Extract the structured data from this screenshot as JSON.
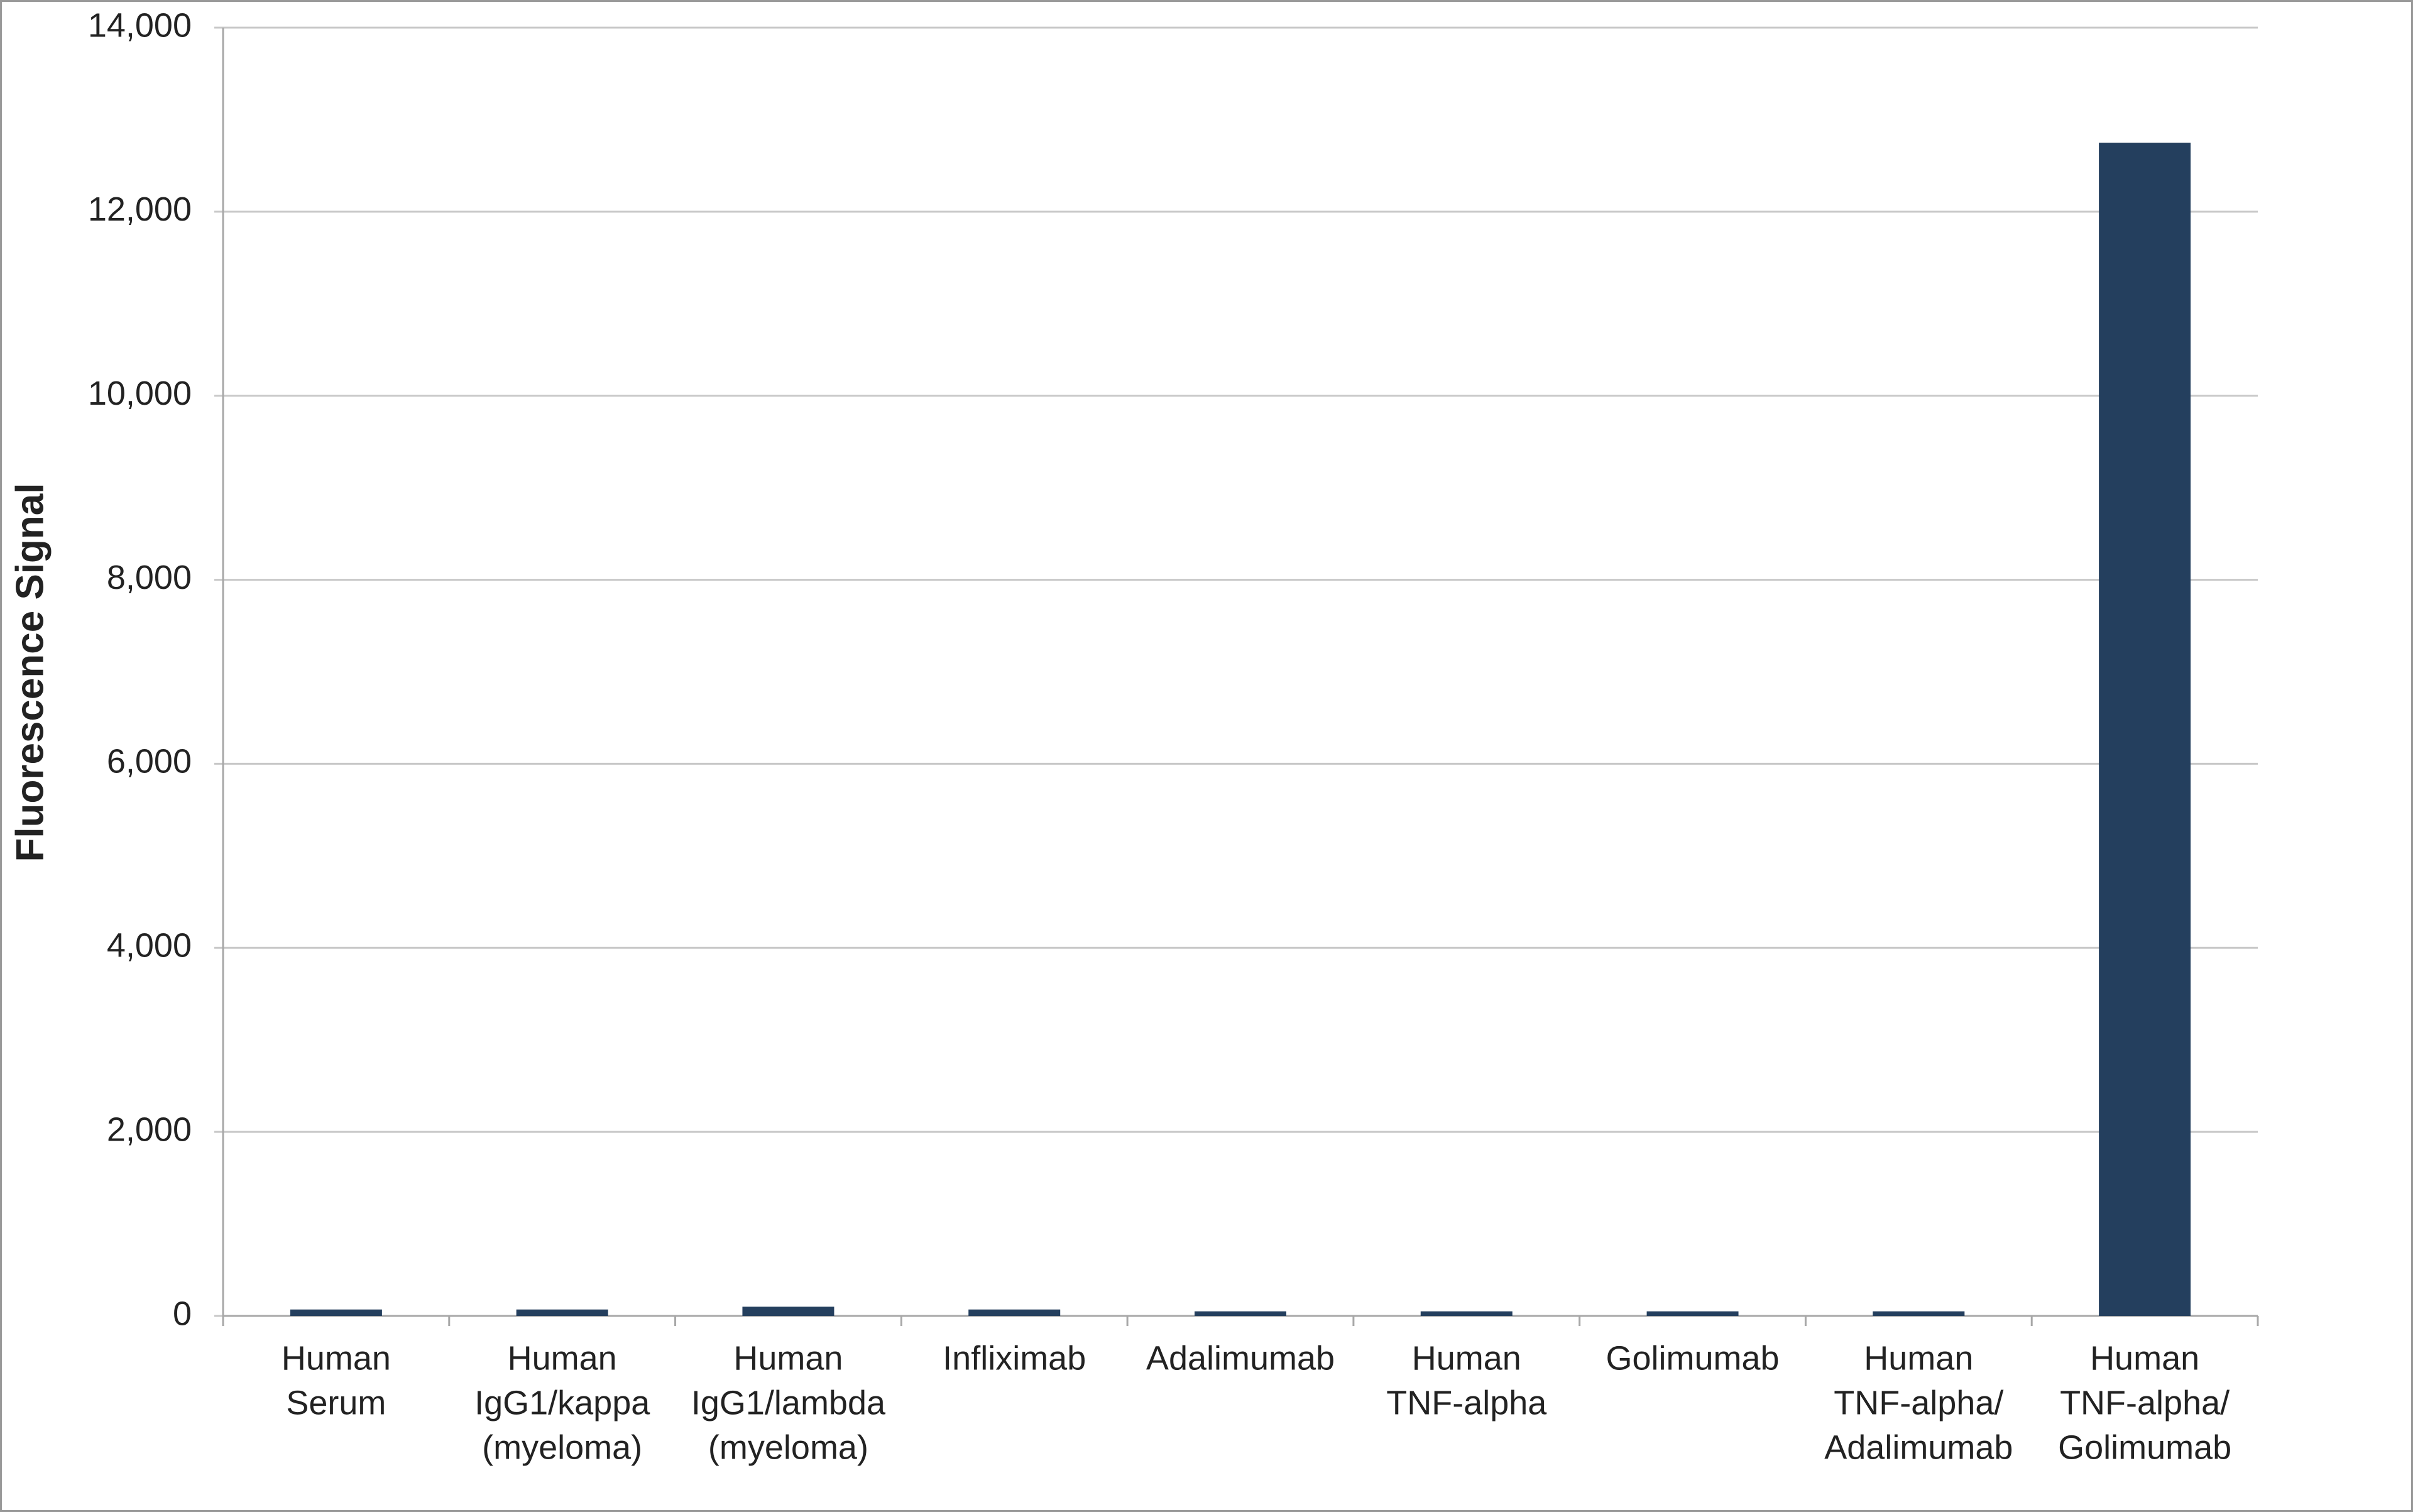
{
  "chart_data": {
    "type": "bar",
    "y_axis_label": "Fluorescence Signal",
    "categories": [
      [
        "Human",
        "Serum"
      ],
      [
        "Human",
        "IgG1/kappa",
        "(myeloma)"
      ],
      [
        "Human",
        "IgG1/lambda",
        "(myeloma)"
      ],
      [
        "Infliximab"
      ],
      [
        "Adalimumab"
      ],
      [
        "Human",
        "TNF-alpha"
      ],
      [
        "Golimumab"
      ],
      [
        "Human",
        "TNF-alpha/",
        "Adalimumab"
      ],
      [
        "Human",
        "TNF-alpha/",
        "Golimumab"
      ]
    ],
    "values": [
      70,
      70,
      100,
      70,
      50,
      50,
      50,
      50,
      12750
    ],
    "color": "#243f5e",
    "ylim": [
      0,
      14000
    ],
    "yticks": [
      0,
      {
        "value": 2000,
        "label": "2,000"
      },
      {
        "value": 4000,
        "label": "4,000"
      },
      {
        "value": 6000,
        "label": "6,000"
      },
      {
        "value": 8000,
        "label": "8,000"
      },
      {
        "value": 10000,
        "label": "10,000"
      },
      {
        "value": 12000,
        "label": "12,000"
      },
      {
        "value": 14000,
        "label": "14,000"
      }
    ],
    "grid": true
  }
}
